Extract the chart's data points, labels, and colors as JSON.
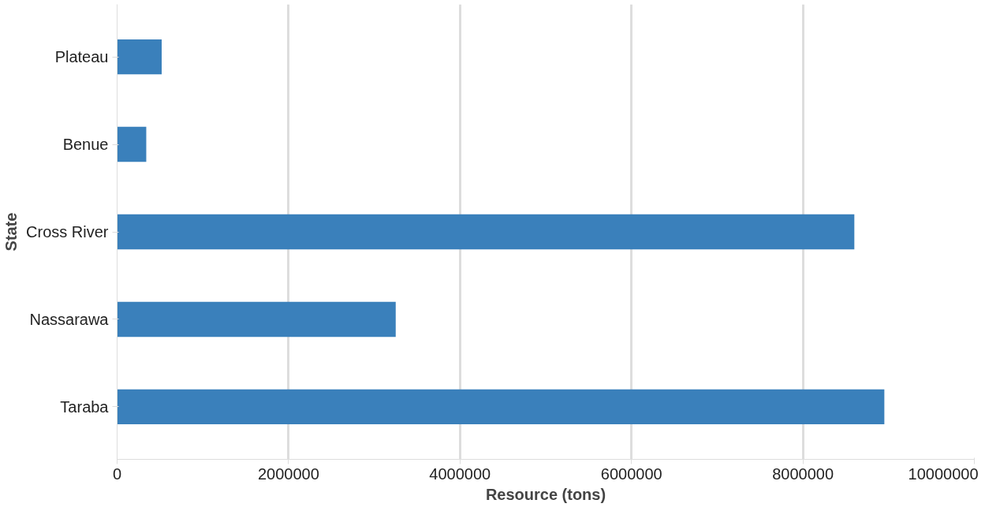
{
  "chart_data": {
    "type": "bar",
    "orientation": "horizontal",
    "xlabel": "Resource (tons)",
    "ylabel": "State",
    "categories": [
      "Plateau",
      "Benue",
      "Cross River",
      "Nassarawa",
      "Taraba"
    ],
    "values": [
      520000,
      340000,
      8600000,
      3250000,
      8950000
    ],
    "color": "#3a80bb",
    "xlim": [
      0,
      10000000
    ],
    "xticks": [
      0,
      2000000,
      4000000,
      6000000,
      8000000,
      10000000
    ],
    "grid": "x"
  }
}
